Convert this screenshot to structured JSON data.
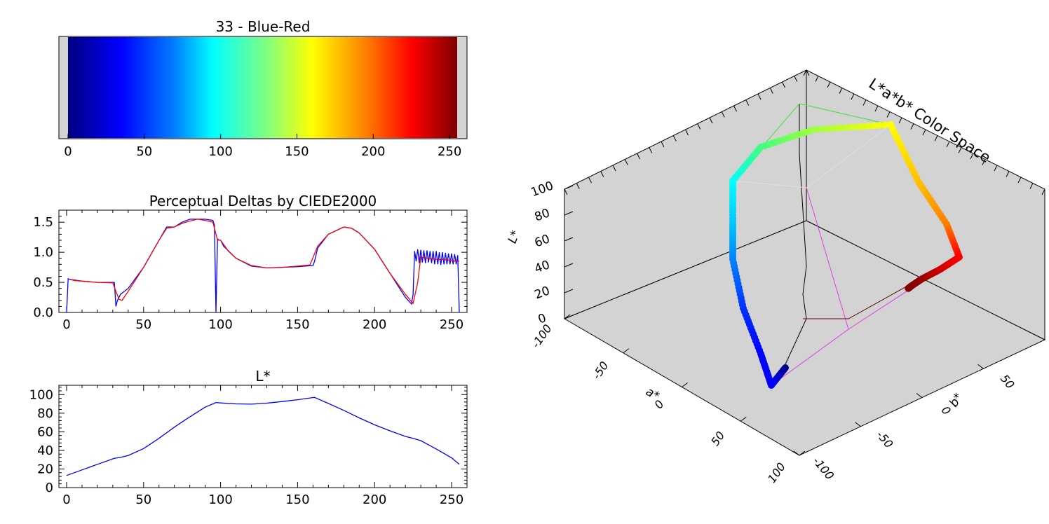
{
  "chart_data": [
    {
      "type": "heatmap",
      "title": "33 - Blue-Red",
      "xlim": [
        0,
        255
      ],
      "xticks": [
        0,
        50,
        100,
        150,
        200,
        250
      ],
      "colormap": {
        "positions": [
          0,
          35,
          70,
          95,
          130,
          160,
          195,
          225,
          255
        ],
        "colors": [
          "#00007f",
          "#0000ff",
          "#0080ff",
          "#00ffff",
          "#80ff80",
          "#ffff00",
          "#ff8000",
          "#ff0000",
          "#7f0000"
        ]
      }
    },
    {
      "type": "line",
      "title": "Perceptual Deltas by CIEDE2000",
      "xlim": [
        -5,
        260
      ],
      "ylim": [
        0,
        1.7
      ],
      "xticks": [
        0,
        50,
        100,
        150,
        200,
        250
      ],
      "yticks": [
        0.0,
        0.5,
        1.0,
        1.5
      ],
      "ytick_labels": [
        "0.0",
        "0.5",
        "1.0",
        "1.5"
      ],
      "series": [
        {
          "color": "#0000ff",
          "x": [
            0,
            1,
            2,
            10,
            20,
            31,
            32,
            33,
            35,
            40,
            50,
            60,
            65,
            70,
            75,
            80,
            85,
            90,
            95,
            96,
            97,
            98,
            99,
            100,
            102,
            110,
            120,
            130,
            140,
            150,
            160,
            161,
            163,
            170,
            180,
            185,
            190,
            200,
            210,
            220,
            224,
            225,
            226,
            227,
            228,
            229,
            230,
            231,
            232,
            233,
            234,
            235,
            236,
            237,
            238,
            239,
            240,
            241,
            242,
            243,
            244,
            245,
            246,
            247,
            248,
            249,
            250,
            251,
            252,
            253,
            254,
            255
          ],
          "y": [
            0.0,
            0.56,
            0.55,
            0.52,
            0.5,
            0.5,
            0.1,
            0.2,
            0.3,
            0.4,
            0.75,
            1.2,
            1.42,
            1.42,
            1.5,
            1.55,
            1.55,
            1.55,
            1.53,
            1.45,
            0.0,
            1.22,
            1.2,
            1.2,
            1.1,
            0.9,
            0.77,
            0.74,
            0.75,
            0.76,
            0.78,
            0.85,
            1.07,
            1.3,
            1.42,
            1.4,
            1.32,
            1.05,
            0.65,
            0.25,
            0.14,
            0.3,
            1.02,
            0.85,
            1.05,
            0.82,
            1.04,
            0.83,
            1.03,
            0.82,
            1.03,
            0.83,
            1.02,
            0.82,
            1.02,
            0.8,
            1.02,
            0.8,
            1.0,
            0.79,
            1.0,
            0.8,
            0.99,
            0.8,
            0.98,
            0.8,
            0.98,
            0.8,
            0.97,
            0.8,
            0.95,
            0.0
          ]
        },
        {
          "color": "#ff0000",
          "x": [
            2,
            5,
            10,
            20,
            30,
            32,
            34,
            36,
            40,
            50,
            60,
            65,
            70,
            75,
            80,
            85,
            90,
            95,
            98,
            100,
            105,
            110,
            120,
            130,
            140,
            150,
            158,
            163,
            170,
            180,
            185,
            190,
            200,
            210,
            220,
            225,
            228,
            230,
            235,
            240,
            245,
            250,
            255
          ],
          "y": [
            0.55,
            0.53,
            0.52,
            0.5,
            0.49,
            0.35,
            0.22,
            0.2,
            0.35,
            0.75,
            1.2,
            1.4,
            1.42,
            1.48,
            1.52,
            1.55,
            1.53,
            1.5,
            1.2,
            1.2,
            1.02,
            0.9,
            0.78,
            0.74,
            0.75,
            0.77,
            0.79,
            1.1,
            1.3,
            1.42,
            1.4,
            1.32,
            1.05,
            0.65,
            0.3,
            0.15,
            0.5,
            0.92,
            0.9,
            0.88,
            0.88,
            0.86,
            0.85
          ]
        }
      ]
    },
    {
      "type": "line",
      "title": "L*",
      "xlim": [
        -5,
        260
      ],
      "ylim": [
        0,
        110
      ],
      "xticks": [
        0,
        50,
        100,
        150,
        200,
        250
      ],
      "yticks": [
        0,
        20,
        40,
        60,
        80,
        100
      ],
      "series": [
        {
          "color": "#0000ff",
          "x": [
            0,
            10,
            20,
            31,
            35,
            40,
            50,
            60,
            70,
            80,
            90,
            97,
            100,
            110,
            120,
            130,
            140,
            150,
            160,
            161,
            170,
            180,
            190,
            200,
            210,
            220,
            225,
            230,
            240,
            250,
            255
          ],
          "y": [
            13,
            19,
            25,
            31.5,
            32.5,
            34.5,
            42,
            53,
            65,
            76,
            86.5,
            91.5,
            91,
            90,
            89.7,
            90.8,
            92.5,
            94.5,
            96.8,
            97,
            90.5,
            83,
            75,
            67.5,
            61,
            55,
            53,
            50.5,
            41.5,
            32,
            25
          ]
        }
      ]
    },
    {
      "type": "scatter",
      "title": "L*a*b* Color Space",
      "xlabel": "a*",
      "ylabel": "b*",
      "zlabel": "L*",
      "xlim": [
        -100,
        100
      ],
      "ylim": [
        -100,
        100
      ],
      "zlim": [
        0,
        100
      ],
      "a_ticks": [
        -100,
        -50,
        0,
        50,
        100
      ],
      "b_ticks": [
        -100,
        -50,
        0,
        50
      ],
      "L_ticks": [
        0,
        20,
        40,
        60,
        80,
        100
      ],
      "points_Lab": [
        {
          "L": 13,
          "a": 47,
          "b": -64,
          "color": "#00007f"
        },
        {
          "L": 24,
          "a": 58,
          "b": -90,
          "color": "#0000ff"
        },
        {
          "L": 34,
          "a": 62,
          "b": -94,
          "color": "#0000ff"
        },
        {
          "L": 47,
          "a": 40,
          "b": -95,
          "color": "#0030ff"
        },
        {
          "L": 60,
          "a": 10,
          "b": -85,
          "color": "#0080ff"
        },
        {
          "L": 76,
          "a": -20,
          "b": -65,
          "color": "#00c0ff"
        },
        {
          "L": 91,
          "a": -48,
          "b": -14,
          "color": "#00ffff"
        },
        {
          "L": 92,
          "a": -70,
          "b": 20,
          "color": "#40ff80"
        },
        {
          "L": 94,
          "a": -60,
          "b": 60,
          "color": "#a0ff40"
        },
        {
          "L": 97,
          "a": -21,
          "b": 94,
          "color": "#ffff00"
        },
        {
          "L": 82,
          "a": 10,
          "b": 84,
          "color": "#ffc000"
        },
        {
          "L": 67,
          "a": 44,
          "b": 74,
          "color": "#ff8000"
        },
        {
          "L": 53,
          "a": 80,
          "b": 67,
          "color": "#ff0000"
        },
        {
          "L": 46,
          "a": 75,
          "b": 60,
          "color": "#d00000"
        },
        {
          "L": 39,
          "a": 68,
          "b": 54,
          "color": "#a00000"
        },
        {
          "L": 32,
          "a": 62,
          "b": 48,
          "color": "#880000"
        },
        {
          "L": 25,
          "a": 57,
          "b": 42,
          "color": "#7f0000"
        }
      ]
    }
  ]
}
